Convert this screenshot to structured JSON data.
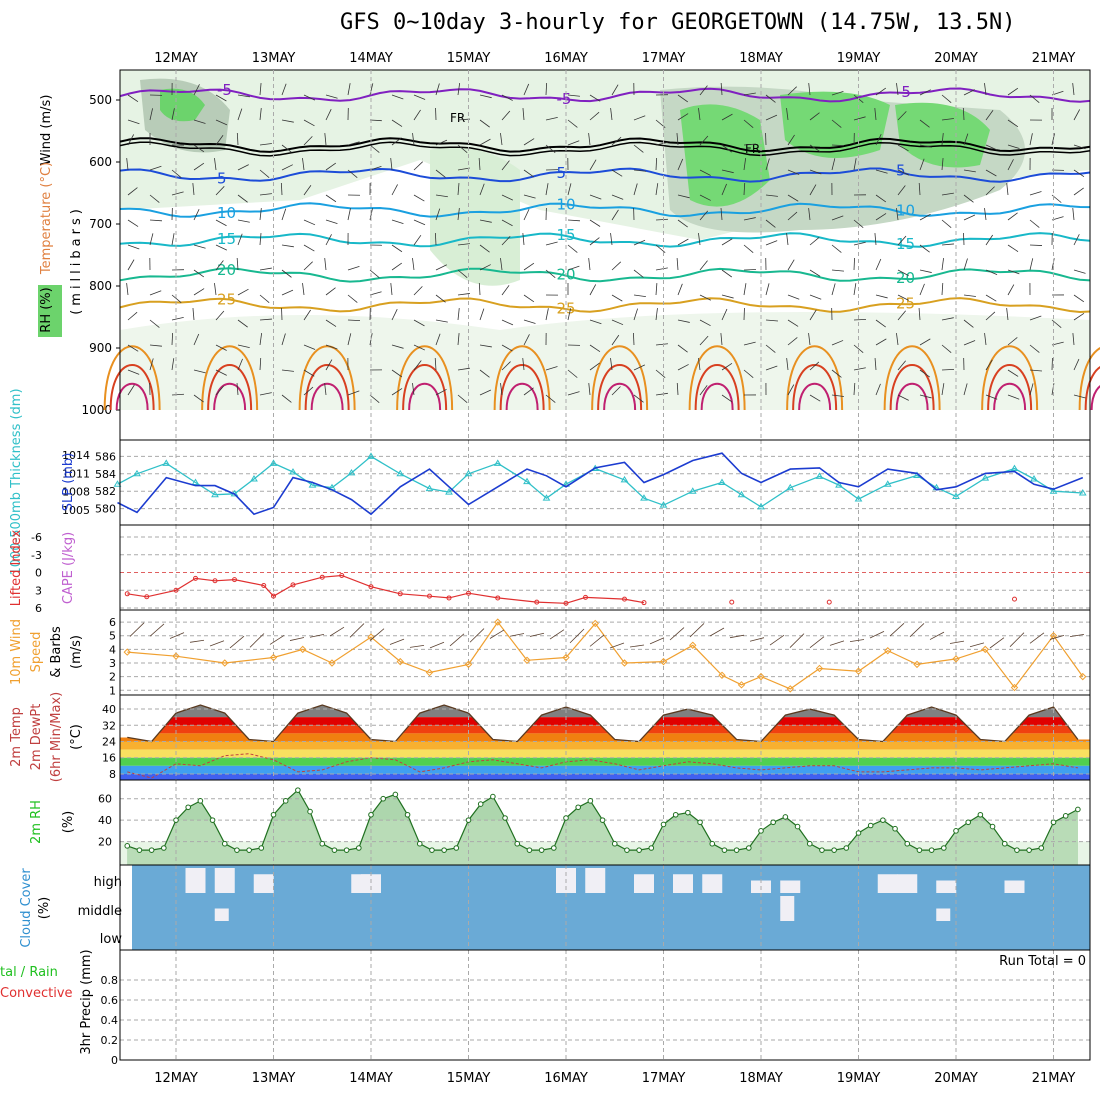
{
  "title": "GFS 0~10day 3-hourly for GEORGETOWN (14.75W, 13.5N)",
  "dates": [
    "12MAY",
    "13MAY",
    "14MAY",
    "15MAY",
    "16MAY",
    "17MAY",
    "18MAY",
    "19MAY",
    "20MAY",
    "21MAY"
  ],
  "panels": {
    "upper": {
      "label_wind": "Wind (m/s)",
      "label_temp": "Temperature (°C)",
      "label_rh": "RH (%)",
      "label_axis": "(millibars)",
      "ticks": [
        "500",
        "600",
        "700",
        "800",
        "900",
        "1000"
      ]
    },
    "thickness": {
      "label_thick": "1000-500mb Thickness (dm)",
      "label_slp": "SLP (mb)",
      "left_ticks": [
        "586",
        "584",
        "582",
        "580"
      ],
      "right_ticks": [
        "1014",
        "1011",
        "1008",
        "1005"
      ]
    },
    "cape": {
      "label_li": "Lifted Index",
      "label_cape": "CAPE (J/kg)",
      "ticks": [
        "-6",
        "-3",
        "0",
        "3",
        "6"
      ]
    },
    "wind": {
      "label_a": "10m Wind",
      "label_b": "Speed",
      "label_c": "& Barbs",
      "label_unit": "(m/s)",
      "ticks": [
        "6",
        "5",
        "4",
        "3",
        "2",
        "1"
      ]
    },
    "temp": {
      "label_a": "2m Temp",
      "label_b": "2m DewPt",
      "label_c": "(6hr Min/Max)",
      "label_unit": "(°C)",
      "ticks": [
        "40",
        "32",
        "24",
        "16",
        "8"
      ]
    },
    "rh": {
      "label_a": "2m RH",
      "label_unit": "(%)",
      "ticks": [
        "60",
        "40",
        "20"
      ]
    },
    "cloud": {
      "label_a": "Cloud Cover",
      "label_unit": "(%)",
      "levels": [
        "high",
        "middle",
        "low"
      ]
    },
    "precip": {
      "label_total": "tal / Rain",
      "label_conv": "Convective",
      "label_axis": "3hr Precip (mm)",
      "run_total": "Run Total = 0",
      "ticks": [
        "0.8",
        "0.6",
        "0.4",
        "0.2",
        "0"
      ]
    }
  },
  "colors": {
    "rh_green": "#5fd35f",
    "thickness": "#30c0c8",
    "slp": "#1c3cd0",
    "lifted_index": "#e03030",
    "wind_speed": "#f0a030",
    "cloud_blue": "#6aaad6",
    "cloud_white": "#f0eff5"
  },
  "chart_data": [
    {
      "type": "line",
      "panel": "thickness",
      "x_unit": "days from 12MAY 00Z",
      "x": [
        -0.6,
        -0.4,
        -0.1,
        0.2,
        0.4,
        0.6,
        0.8,
        1.0,
        1.2,
        1.4,
        1.6,
        1.8,
        2.0,
        2.3,
        2.6,
        2.8,
        3.0,
        3.3,
        3.6,
        3.8,
        4.0,
        4.3,
        4.6,
        4.8,
        5.0,
        5.3,
        5.6,
        5.8,
        6.0,
        6.3,
        6.6,
        6.8,
        7.0,
        7.3,
        7.6,
        7.8,
        8.0,
        8.3,
        8.6,
        8.8,
        9.0,
        9.3
      ],
      "series": [
        {
          "name": "1000-500mb Thickness (dm)",
          "values": [
            582.8,
            584.0,
            585.2,
            583.0,
            581.6,
            581.7,
            583.4,
            585.2,
            584.2,
            582.7,
            582.4,
            584.1,
            586.0,
            584.0,
            582.3,
            581.9,
            584.0,
            585.2,
            583.1,
            581.2,
            582.8,
            584.6,
            583.3,
            581.2,
            580.4,
            582.0,
            583.0,
            581.6,
            580.2,
            582.4,
            583.7,
            582.7,
            581.1,
            582.8,
            583.8,
            582.4,
            581.4,
            583.5,
            584.6,
            583.4,
            582.0,
            581.8
          ]
        },
        {
          "name": "SLP (mb)",
          "values": [
            1006.2,
            1004.6,
            1010.3,
            1009.0,
            1009.0,
            1007.6,
            1004.3,
            1005.4,
            1010.3,
            1009.5,
            1008.3,
            1006.7,
            1004.3,
            1008.8,
            1011.7,
            1008.8,
            1005.9,
            1008.8,
            1011.7,
            1010.6,
            1008.8,
            1011.9,
            1012.8,
            1009.5,
            1010.8,
            1013.1,
            1014.3,
            1011.0,
            1009.5,
            1011.7,
            1011.9,
            1009.5,
            1008.8,
            1011.7,
            1011.0,
            1008.3,
            1008.8,
            1011.0,
            1011.3,
            1009.2,
            1008.4,
            1010.3
          ]
        }
      ]
    },
    {
      "type": "line",
      "panel": "lifted_index",
      "x_unit": "days from 12MAY 00Z",
      "x": [
        -0.5,
        -0.3,
        0.0,
        0.2,
        0.4,
        0.6,
        0.9,
        1.0,
        1.2,
        1.5,
        1.7,
        2.0,
        2.3,
        2.6,
        2.8,
        3.0,
        3.3,
        3.7,
        4.0,
        4.2,
        4.6,
        4.8,
        5.7,
        6.7,
        8.6
      ],
      "series": [
        {
          "name": "Lifted Index",
          "values": [
            3.6,
            4.1,
            3.0,
            1.0,
            1.4,
            1.2,
            2.2,
            4.0,
            2.1,
            0.8,
            0.5,
            2.4,
            3.6,
            4.0,
            4.3,
            3.5,
            4.3,
            5.0,
            5.2,
            4.2,
            4.5,
            5.1,
            5.0,
            5.0,
            4.5
          ]
        }
      ]
    },
    {
      "type": "line",
      "panel": "wind_speed",
      "x_unit": "days from 12MAY 00Z",
      "x": [
        -0.5,
        0.0,
        0.5,
        1.0,
        1.3,
        1.6,
        2.0,
        2.3,
        2.6,
        3.0,
        3.3,
        3.6,
        4.0,
        4.3,
        4.6,
        5.0,
        5.3,
        5.6,
        5.8,
        6.0,
        6.3,
        6.6,
        7.0,
        7.3,
        7.6,
        8.0,
        8.3,
        8.6,
        9.0,
        9.3
      ],
      "series": [
        {
          "name": "10m Wind Speed (m/s)",
          "values": [
            3.8,
            3.5,
            3.0,
            3.4,
            4.0,
            3.0,
            4.9,
            3.1,
            2.3,
            2.9,
            6.0,
            3.2,
            3.4,
            5.9,
            3.0,
            3.1,
            4.3,
            2.1,
            1.4,
            2.0,
            1.1,
            2.6,
            2.4,
            3.9,
            2.9,
            3.3,
            4.0,
            1.2,
            5.0,
            2.0
          ]
        }
      ]
    },
    {
      "type": "area",
      "panel": "temp",
      "x_unit": "days from 12MAY 00Z",
      "x": [
        -0.5,
        -0.25,
        0.0,
        0.25,
        0.5,
        0.75,
        1.0,
        1.25,
        1.5,
        1.75,
        2.0,
        2.25,
        2.5,
        2.75,
        3.0,
        3.25,
        3.5,
        3.75,
        4.0,
        4.25,
        4.5,
        4.75,
        5.0,
        5.25,
        5.5,
        5.75,
        6.0,
        6.25,
        6.5,
        6.75,
        7.0,
        7.25,
        7.5,
        7.75,
        8.0,
        8.25,
        8.5,
        8.75,
        9.0,
        9.25
      ],
      "series": [
        {
          "name": "2m Temp (°C)",
          "values": [
            26,
            24,
            38,
            42,
            38,
            25,
            24,
            38,
            42,
            38,
            25,
            24,
            38,
            42,
            38,
            25,
            24,
            37,
            41,
            37,
            25,
            24,
            37,
            40,
            37,
            25,
            24,
            37,
            40,
            37,
            25,
            24,
            37,
            41,
            37,
            25,
            24,
            37,
            41,
            25
          ]
        },
        {
          "name": "2m DewPt (°C)",
          "values": [
            9,
            6,
            13,
            12,
            17,
            18,
            15,
            9,
            10,
            14,
            16,
            15,
            9,
            11,
            14,
            15,
            13,
            11,
            14,
            15,
            13,
            10,
            12,
            14,
            13,
            11,
            10,
            11,
            12,
            12,
            9,
            9,
            10,
            11,
            11,
            10,
            11,
            12,
            13,
            11
          ]
        }
      ]
    },
    {
      "type": "area",
      "panel": "rh",
      "x_unit": "days from 12MAY 00Z",
      "x": [
        -0.5,
        -0.375,
        -0.25,
        -0.125,
        0.0,
        0.125,
        0.25,
        0.375,
        0.5,
        0.625,
        0.75,
        0.875,
        1.0,
        1.125,
        1.25,
        1.375,
        1.5,
        1.625,
        1.75,
        1.875,
        2.0,
        2.125,
        2.25,
        2.375,
        2.5,
        2.625,
        2.75,
        2.875,
        3.0,
        3.125,
        3.25,
        3.375,
        3.5,
        3.625,
        3.75,
        3.875,
        4.0,
        4.125,
        4.25,
        4.375,
        4.5,
        4.625,
        4.75,
        4.875,
        5.0,
        5.125,
        5.25,
        5.375,
        5.5,
        5.625,
        5.75,
        5.875,
        6.0,
        6.125,
        6.25,
        6.375,
        6.5,
        6.625,
        6.75,
        6.875,
        7.0,
        7.125,
        7.25,
        7.375,
        7.5,
        7.625,
        7.75,
        7.875,
        8.0,
        8.125,
        8.25,
        8.375,
        8.5,
        8.625,
        8.75,
        8.875,
        9.0,
        9.125,
        9.25
      ],
      "series": [
        {
          "name": "2m RH (%)",
          "values": [
            16,
            12,
            12,
            14,
            40,
            52,
            58,
            40,
            18,
            12,
            12,
            14,
            45,
            58,
            68,
            48,
            18,
            12,
            12,
            14,
            45,
            60,
            64,
            45,
            18,
            12,
            12,
            14,
            40,
            55,
            62,
            42,
            18,
            12,
            12,
            14,
            42,
            52,
            58,
            40,
            18,
            12,
            12,
            14,
            36,
            45,
            47,
            38,
            18,
            12,
            12,
            14,
            30,
            38,
            43,
            34,
            18,
            12,
            12,
            14,
            28,
            35,
            40,
            32,
            18,
            12,
            12,
            14,
            30,
            38,
            45,
            34,
            18,
            12,
            12,
            14,
            38,
            44,
            50
          ]
        }
      ]
    },
    {
      "type": "bar",
      "panel": "cloud_cover",
      "levels": [
        "high",
        "middle",
        "low"
      ],
      "note": "low cloud 0% throughout; high and middle cover shown as white bars",
      "x_unit": "days from 12MAY 00Z",
      "x": [
        0.2,
        0.5,
        0.9,
        1.9,
        2.0,
        4.0,
        4.3,
        4.8,
        5.2,
        5.5,
        6.0,
        6.3,
        7.3,
        7.5,
        7.9,
        8.6
      ],
      "series": [
        {
          "name": "high",
          "values": [
            100,
            100,
            75,
            75,
            75,
            100,
            100,
            75,
            75,
            75,
            50,
            50,
            75,
            75,
            50,
            50
          ]
        },
        {
          "name": "middle",
          "values": [
            0,
            50,
            0,
            0,
            0,
            0,
            0,
            0,
            0,
            0,
            0,
            100,
            0,
            0,
            50,
            0
          ]
        }
      ]
    },
    {
      "type": "bar",
      "panel": "precip",
      "ylim": [
        0,
        0.9
      ],
      "series": [
        {
          "name": "Total / Rain",
          "values": []
        },
        {
          "name": "Convective",
          "values": []
        }
      ]
    }
  ]
}
